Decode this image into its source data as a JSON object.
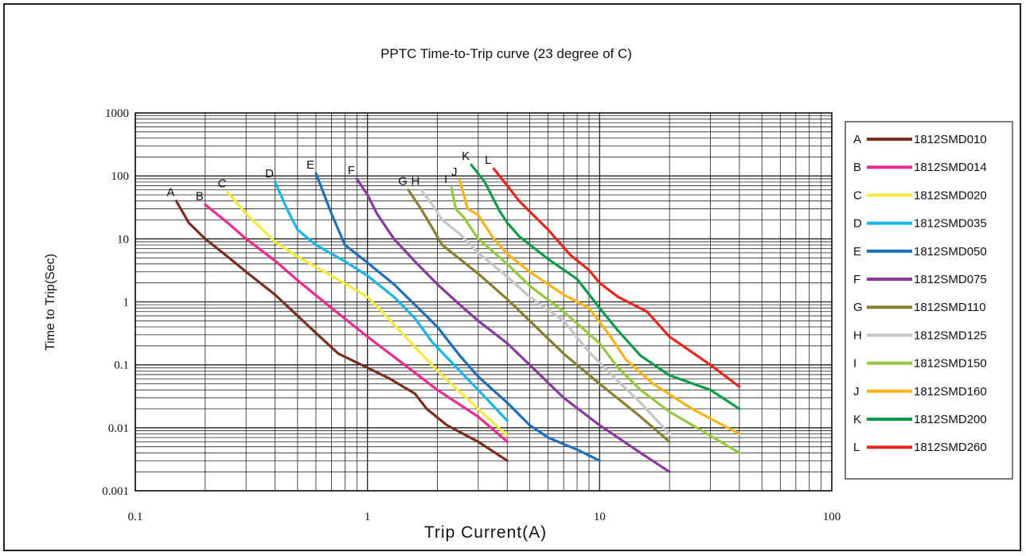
{
  "chart_data": {
    "type": "line",
    "title": "PPTC Time-to-Trip curve (23 degree of C)",
    "xlabel": "Trip Current(A)",
    "ylabel": "Time to Trip(Sec)",
    "xscale": "log",
    "yscale": "log",
    "xlim": [
      0.1,
      100
    ],
    "ylim": [
      0.001,
      1000
    ],
    "x_ticks": [
      "0.1",
      "1",
      "10",
      "100"
    ],
    "y_ticks": [
      "1000",
      "100",
      "10",
      "1",
      "0.1",
      "0.01",
      "0.001"
    ],
    "grid": true,
    "legend_position": "right",
    "series": [
      {
        "letter": "A",
        "name": "1812SMD010",
        "color": "#7a2e1e",
        "points": [
          [
            0.15,
            40
          ],
          [
            0.17,
            18
          ],
          [
            0.2,
            10
          ],
          [
            0.25,
            5.2
          ],
          [
            0.3,
            3.0
          ],
          [
            0.4,
            1.3
          ],
          [
            0.5,
            0.6
          ],
          [
            0.6,
            0.32
          ],
          [
            0.75,
            0.15
          ],
          [
            1.0,
            0.09
          ],
          [
            1.25,
            0.06
          ],
          [
            1.6,
            0.035
          ],
          [
            1.8,
            0.02
          ],
          [
            2.2,
            0.011
          ],
          [
            3.0,
            0.006
          ],
          [
            4.0,
            0.003
          ]
        ]
      },
      {
        "letter": "B",
        "name": "1812SMD014",
        "color": "#ec2a8e",
        "points": [
          [
            0.2,
            35
          ],
          [
            0.25,
            18
          ],
          [
            0.3,
            10
          ],
          [
            0.4,
            4.5
          ],
          [
            0.5,
            2.2
          ],
          [
            0.7,
            0.8
          ],
          [
            1.0,
            0.28
          ],
          [
            1.5,
            0.09
          ],
          [
            2.0,
            0.04
          ],
          [
            3.0,
            0.015
          ],
          [
            4.0,
            0.006
          ]
        ]
      },
      {
        "letter": "C",
        "name": "1812SMD020",
        "color": "#f4ea3e",
        "points": [
          [
            0.25,
            55
          ],
          [
            0.3,
            25
          ],
          [
            0.4,
            9
          ],
          [
            0.5,
            5.2
          ],
          [
            0.7,
            2.6
          ],
          [
            1.0,
            1.2
          ],
          [
            1.2,
            0.6
          ],
          [
            1.5,
            0.25
          ],
          [
            2.0,
            0.08
          ],
          [
            3.0,
            0.02
          ],
          [
            4.0,
            0.0075
          ]
        ]
      },
      {
        "letter": "D",
        "name": "1812SMD035",
        "color": "#18b4ea",
        "points": [
          [
            0.4,
            80
          ],
          [
            0.45,
            30
          ],
          [
            0.5,
            14
          ],
          [
            0.6,
            8
          ],
          [
            0.8,
            4.4
          ],
          [
            1.0,
            2.6
          ],
          [
            1.3,
            1.2
          ],
          [
            1.6,
            0.55
          ],
          [
            1.9,
            0.23
          ],
          [
            2.5,
            0.08
          ],
          [
            3.0,
            0.04
          ],
          [
            4.0,
            0.013
          ]
        ]
      },
      {
        "letter": "E",
        "name": "1812SMD050",
        "color": "#1e6fb8",
        "points": [
          [
            0.6,
            110
          ],
          [
            0.7,
            25
          ],
          [
            0.8,
            8
          ],
          [
            1.0,
            4.2
          ],
          [
            1.3,
            1.9
          ],
          [
            1.6,
            0.9
          ],
          [
            2.0,
            0.4
          ],
          [
            2.5,
            0.14
          ],
          [
            3.0,
            0.065
          ],
          [
            4.0,
            0.025
          ],
          [
            5.0,
            0.011
          ],
          [
            6.0,
            0.007
          ],
          [
            8.0,
            0.0045
          ],
          [
            10.0,
            0.003
          ]
        ]
      },
      {
        "letter": "F",
        "name": "1812SMD075",
        "color": "#8a3a9c",
        "points": [
          [
            0.9,
            90
          ],
          [
            1.0,
            50
          ],
          [
            1.1,
            25
          ],
          [
            1.3,
            10
          ],
          [
            1.6,
            4.4
          ],
          [
            2.0,
            1.9
          ],
          [
            2.5,
            0.9
          ],
          [
            3.0,
            0.5
          ],
          [
            4.0,
            0.22
          ],
          [
            5.0,
            0.1
          ],
          [
            7.0,
            0.03
          ],
          [
            10.0,
            0.011
          ],
          [
            15.0,
            0.004
          ],
          [
            20.0,
            0.002
          ]
        ]
      },
      {
        "letter": "G",
        "name": "1812SMD110",
        "color": "#8a7e30",
        "points": [
          [
            1.5,
            60
          ],
          [
            1.7,
            30
          ],
          [
            1.9,
            15
          ],
          [
            2.1,
            8
          ],
          [
            2.5,
            4.8
          ],
          [
            3.0,
            2.8
          ],
          [
            4.0,
            1.1
          ],
          [
            5.0,
            0.5
          ],
          [
            7.0,
            0.15
          ],
          [
            10.0,
            0.05
          ],
          [
            15.0,
            0.015
          ],
          [
            20.0,
            0.006
          ]
        ]
      },
      {
        "letter": "H",
        "name": "1812SMD125",
        "color": "#c6c6c6",
        "points": [
          [
            1.7,
            60
          ],
          [
            1.9,
            35
          ],
          [
            2.1,
            20
          ],
          [
            2.5,
            12
          ],
          [
            3.0,
            6
          ],
          [
            4.0,
            2.5
          ],
          [
            5.0,
            1.2
          ],
          [
            7.0,
            0.5
          ],
          [
            9.0,
            0.16
          ],
          [
            12.0,
            0.055
          ],
          [
            15.0,
            0.025
          ],
          [
            20.0,
            0.008
          ]
        ]
      },
      {
        "letter": "I",
        "name": "1812SMD150",
        "color": "#98c83e",
        "points": [
          [
            2.3,
            65
          ],
          [
            2.4,
            30
          ],
          [
            2.6,
            22
          ],
          [
            3.0,
            10
          ],
          [
            4.0,
            4.0
          ],
          [
            5.0,
            1.8
          ],
          [
            7.0,
            0.7
          ],
          [
            10.0,
            0.22
          ],
          [
            12.0,
            0.09
          ],
          [
            15.0,
            0.04
          ],
          [
            20.0,
            0.018
          ],
          [
            40.0,
            0.004
          ]
        ]
      },
      {
        "letter": "J",
        "name": "1812SMD160",
        "color": "#f8b416",
        "points": [
          [
            2.5,
            85
          ],
          [
            2.6,
            50
          ],
          [
            2.7,
            30
          ],
          [
            3.0,
            24
          ],
          [
            3.5,
            10
          ],
          [
            4.0,
            5.8
          ],
          [
            5.0,
            3.0
          ],
          [
            7.0,
            1.3
          ],
          [
            9.0,
            0.8
          ],
          [
            11.0,
            0.3
          ],
          [
            13.0,
            0.12
          ],
          [
            17.0,
            0.05
          ],
          [
            25.0,
            0.02
          ],
          [
            40.0,
            0.008
          ]
        ]
      },
      {
        "letter": "K",
        "name": "1812SMD200",
        "color": "#0f9a4a",
        "points": [
          [
            2.8,
            150
          ],
          [
            3.2,
            80
          ],
          [
            3.7,
            28
          ],
          [
            4.0,
            18
          ],
          [
            4.5,
            11
          ],
          [
            6.0,
            4.8
          ],
          [
            8.0,
            2.3
          ],
          [
            10.0,
            0.8
          ],
          [
            12.0,
            0.35
          ],
          [
            15.0,
            0.14
          ],
          [
            20.0,
            0.068
          ],
          [
            30.0,
            0.04
          ],
          [
            40.0,
            0.02
          ]
        ]
      },
      {
        "letter": "L",
        "name": "1812SMD260",
        "color": "#e8261f",
        "points": [
          [
            3.5,
            130
          ],
          [
            4.0,
            70
          ],
          [
            4.5,
            40
          ],
          [
            6.0,
            14
          ],
          [
            7.5,
            5.5
          ],
          [
            9.0,
            3.2
          ],
          [
            10.0,
            2.0
          ],
          [
            12.0,
            1.2
          ],
          [
            16.0,
            0.7
          ],
          [
            20.0,
            0.28
          ],
          [
            30.0,
            0.1
          ],
          [
            40.0,
            0.045
          ]
        ]
      }
    ]
  }
}
